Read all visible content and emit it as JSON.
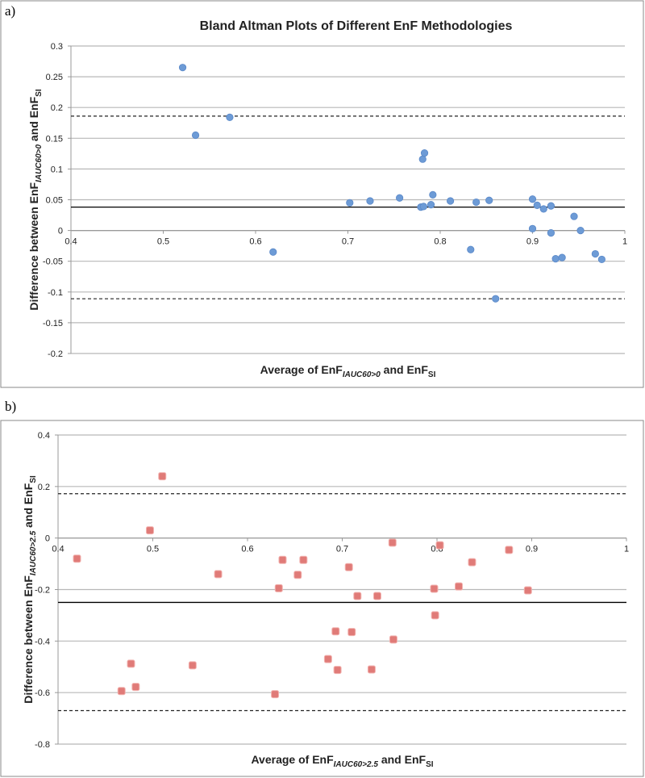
{
  "panels": [
    "a)",
    "b)"
  ],
  "chart_data": [
    {
      "type": "scatter",
      "title": "Bland Altman Plots of Different EnF Methodologies",
      "xlabel": {
        "main": "Average of EnF",
        "sub1": "IAUC60>0",
        "mid": " and EnF",
        "sub2": "SI"
      },
      "ylabel": {
        "main": "Difference between EnF",
        "sub1": "IAUC60>0",
        "mid": " and EnF",
        "sub2": "SI"
      },
      "xlim": [
        0.4,
        1.0
      ],
      "ylim": [
        -0.2,
        0.3
      ],
      "xticks": [
        "0.4",
        "0.5",
        "0.6",
        "0.7",
        "0.8",
        "0.9",
        "1"
      ],
      "yticks": [
        "0.3",
        "0.25",
        "0.2",
        "0.15",
        "0.1",
        "0.05",
        "0",
        "-0.05",
        "-0.1",
        "-0.15",
        "-0.2"
      ],
      "grid": true,
      "marker": "circle",
      "color": "#6d9bd6",
      "mean_line": 0.038,
      "limits_of_agreement": [
        0.186,
        -0.111
      ],
      "points": [
        [
          0.521,
          0.265
        ],
        [
          0.535,
          0.155
        ],
        [
          0.572,
          0.184
        ],
        [
          0.619,
          -0.035
        ],
        [
          0.702,
          0.045
        ],
        [
          0.724,
          0.048
        ],
        [
          0.756,
          0.053
        ],
        [
          0.779,
          0.038
        ],
        [
          0.782,
          0.039
        ],
        [
          0.781,
          0.116
        ],
        [
          0.783,
          0.126
        ],
        [
          0.79,
          0.042
        ],
        [
          0.792,
          0.058
        ],
        [
          0.811,
          0.048
        ],
        [
          0.839,
          0.046
        ],
        [
          0.853,
          0.049
        ],
        [
          0.833,
          -0.031
        ],
        [
          0.86,
          -0.111
        ],
        [
          0.9,
          0.051
        ],
        [
          0.905,
          0.041
        ],
        [
          0.912,
          0.035
        ],
        [
          0.92,
          0.04
        ],
        [
          0.9,
          0.003
        ],
        [
          0.92,
          -0.004
        ],
        [
          0.945,
          0.023
        ],
        [
          0.952,
          0.0
        ],
        [
          0.925,
          -0.046
        ],
        [
          0.932,
          -0.044
        ],
        [
          0.968,
          -0.038
        ],
        [
          0.975,
          -0.047
        ]
      ]
    },
    {
      "type": "scatter",
      "xlabel": {
        "main": "Average of EnF",
        "sub1": "IAUC60>2.5",
        "mid": " and EnF",
        "sub2": "SI"
      },
      "ylabel": {
        "main": "Difference between EnF",
        "sub1": "IAUC60>2.5",
        "mid": " and EnF",
        "sub2": "SI"
      },
      "xlim": [
        0.4,
        1.0
      ],
      "ylim": [
        -0.8,
        0.4
      ],
      "xticks": [
        "0.4",
        "0.5",
        "0.6",
        "0.7",
        "0.8",
        "0.9",
        "1"
      ],
      "yticks": [
        "0.4",
        "0.2",
        "0",
        "-0.2",
        "-0.4",
        "-0.6",
        "-0.8"
      ],
      "grid": true,
      "marker": "square",
      "color": "#e07b78",
      "mean_line": -0.25,
      "limits_of_agreement": [
        0.172,
        -0.67
      ],
      "points": [
        [
          0.42,
          -0.08
        ],
        [
          0.51,
          0.24
        ],
        [
          0.497,
          0.03
        ],
        [
          0.569,
          -0.14
        ],
        [
          0.637,
          -0.085
        ],
        [
          0.659,
          -0.085
        ],
        [
          0.653,
          -0.143
        ],
        [
          0.633,
          -0.195
        ],
        [
          0.707,
          -0.113
        ],
        [
          0.716,
          -0.225
        ],
        [
          0.693,
          -0.362
        ],
        [
          0.71,
          -0.365
        ],
        [
          0.685,
          -0.47
        ],
        [
          0.695,
          -0.512
        ],
        [
          0.477,
          -0.488
        ],
        [
          0.542,
          -0.494
        ],
        [
          0.467,
          -0.594
        ],
        [
          0.482,
          -0.578
        ],
        [
          0.629,
          -0.606
        ],
        [
          0.753,
          -0.018
        ],
        [
          0.803,
          -0.028
        ],
        [
          0.876,
          -0.046
        ],
        [
          0.837,
          -0.094
        ],
        [
          0.737,
          -0.225
        ],
        [
          0.797,
          -0.197
        ],
        [
          0.823,
          -0.188
        ],
        [
          0.896,
          -0.203
        ],
        [
          0.798,
          -0.3
        ],
        [
          0.754,
          -0.394
        ],
        [
          0.731,
          -0.51
        ]
      ]
    }
  ]
}
